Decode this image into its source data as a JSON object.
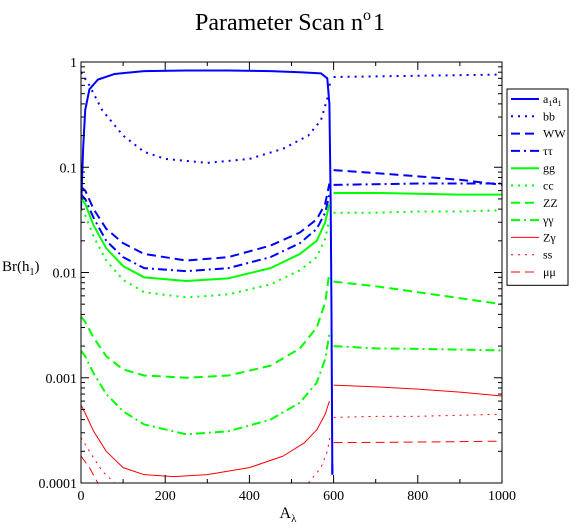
{
  "chart_data": {
    "type": "line",
    "title": "Parameter Scan n",
    "title_sup": "o",
    "title_tail": "1",
    "xlabel": "A",
    "xlabel_sub": "λ",
    "ylabel": "Br(h",
    "ylabel_sub": "1",
    "ylabel_tail": ")",
    "x_scale": "linear",
    "y_scale": "log",
    "xlim": [
      0,
      1000
    ],
    "ylim": [
      0.0001,
      1
    ],
    "x_ticks": [
      0,
      200,
      400,
      600,
      800,
      1000
    ],
    "x_tick_labels": [
      "0",
      "200",
      "400",
      "600",
      "800",
      "1000"
    ],
    "y_ticks": [
      0.0001,
      0.001,
      0.01,
      0.1,
      1
    ],
    "y_tick_labels": [
      "0.0001",
      "0.001",
      "0.01",
      "0.1",
      "1"
    ],
    "grid": false,
    "legend_position": "right",
    "series": [
      {
        "name": "a",
        "name_sub": "1",
        "name_mid": "a",
        "name_sub2": "1",
        "color": "#0000ff",
        "dash": "solid",
        "width": 2,
        "points": [
          [
            0,
            0.04
          ],
          [
            5,
            0.15
          ],
          [
            10,
            0.35
          ],
          [
            20,
            0.55
          ],
          [
            40,
            0.68
          ],
          [
            80,
            0.77
          ],
          [
            150,
            0.82
          ],
          [
            250,
            0.83
          ],
          [
            350,
            0.83
          ],
          [
            450,
            0.82
          ],
          [
            520,
            0.8
          ],
          [
            570,
            0.78
          ],
          [
            585,
            0.7
          ],
          [
            590,
            0.4
          ],
          [
            593,
            0.05
          ],
          [
            595,
            0.004
          ],
          [
            597,
            0.00012
          ]
        ]
      },
      {
        "name": "a",
        "name_sub": "1",
        "name_mid": "a",
        "name_sub2": "1",
        "color": "#0000ff",
        "dash": "solid",
        "width": 2,
        "points": [
          [
            597,
            0.00015
          ],
          [
            597,
            0.00012
          ]
        ]
      },
      {
        "name": "bb",
        "color": "#0000ff",
        "dash": "dot",
        "width": 2,
        "points": [
          [
            0,
            0.8
          ],
          [
            20,
            0.6
          ],
          [
            50,
            0.35
          ],
          [
            100,
            0.2
          ],
          [
            150,
            0.14
          ],
          [
            200,
            0.12
          ],
          [
            300,
            0.11
          ],
          [
            400,
            0.12
          ],
          [
            480,
            0.15
          ],
          [
            540,
            0.2
          ],
          [
            570,
            0.28
          ],
          [
            585,
            0.45
          ],
          [
            592,
            0.65
          ]
        ]
      },
      {
        "name": "bb",
        "color": "#0000ff",
        "dash": "dot",
        "width": 2,
        "points": [
          [
            600,
            0.72
          ],
          [
            700,
            0.73
          ],
          [
            800,
            0.74
          ],
          [
            900,
            0.75
          ],
          [
            1000,
            0.76
          ]
        ]
      },
      {
        "name": "WW",
        "color": "#0000ff",
        "dash": "dash",
        "width": 2,
        "points": [
          [
            0,
            0.065
          ],
          [
            10,
            0.06
          ],
          [
            30,
            0.04
          ],
          [
            60,
            0.026
          ],
          [
            100,
            0.019
          ],
          [
            150,
            0.015
          ],
          [
            250,
            0.013
          ],
          [
            350,
            0.014
          ],
          [
            450,
            0.018
          ],
          [
            520,
            0.024
          ],
          [
            560,
            0.032
          ],
          [
            580,
            0.045
          ],
          [
            590,
            0.07
          ]
        ]
      },
      {
        "name": "WW",
        "color": "#0000ff",
        "dash": "dash",
        "width": 2,
        "points": [
          [
            600,
            0.094
          ],
          [
            700,
            0.088
          ],
          [
            800,
            0.082
          ],
          [
            900,
            0.076
          ],
          [
            1000,
            0.068
          ]
        ]
      },
      {
        "name": "ττ",
        "color": "#0000ff",
        "dash": "dashdot",
        "width": 2,
        "points": [
          [
            0,
            0.055
          ],
          [
            10,
            0.05
          ],
          [
            30,
            0.033
          ],
          [
            60,
            0.02
          ],
          [
            100,
            0.014
          ],
          [
            150,
            0.011
          ],
          [
            250,
            0.0103
          ],
          [
            350,
            0.011
          ],
          [
            450,
            0.014
          ],
          [
            520,
            0.019
          ],
          [
            560,
            0.026
          ],
          [
            580,
            0.037
          ],
          [
            590,
            0.055
          ]
        ]
      },
      {
        "name": "ττ",
        "color": "#0000ff",
        "dash": "dashdot",
        "width": 2,
        "points": [
          [
            600,
            0.068
          ],
          [
            700,
            0.069
          ],
          [
            800,
            0.07
          ],
          [
            900,
            0.07
          ],
          [
            1000,
            0.07
          ]
        ]
      },
      {
        "name": "gg",
        "color": "#00ff00",
        "dash": "solid",
        "width": 2,
        "points": [
          [
            0,
            0.05
          ],
          [
            10,
            0.045
          ],
          [
            30,
            0.028
          ],
          [
            60,
            0.017
          ],
          [
            100,
            0.0115
          ],
          [
            150,
            0.009
          ],
          [
            250,
            0.0083
          ],
          [
            350,
            0.0088
          ],
          [
            450,
            0.011
          ],
          [
            520,
            0.015
          ],
          [
            560,
            0.02
          ],
          [
            580,
            0.03
          ],
          [
            590,
            0.045
          ]
        ]
      },
      {
        "name": "gg",
        "color": "#00ff00",
        "dash": "solid",
        "width": 2,
        "points": [
          [
            600,
            0.057
          ],
          [
            700,
            0.057
          ],
          [
            800,
            0.056
          ],
          [
            900,
            0.055
          ],
          [
            1000,
            0.055
          ]
        ]
      },
      {
        "name": "cc",
        "color": "#00ff00",
        "dash": "dot",
        "width": 2,
        "points": [
          [
            0,
            0.04
          ],
          [
            10,
            0.035
          ],
          [
            30,
            0.022
          ],
          [
            60,
            0.013
          ],
          [
            100,
            0.0085
          ],
          [
            150,
            0.0065
          ],
          [
            250,
            0.0058
          ],
          [
            350,
            0.0062
          ],
          [
            450,
            0.0077
          ],
          [
            520,
            0.0105
          ],
          [
            560,
            0.014
          ],
          [
            580,
            0.021
          ],
          [
            590,
            0.032
          ]
        ]
      },
      {
        "name": "cc",
        "color": "#00ff00",
        "dash": "dot",
        "width": 2,
        "points": [
          [
            600,
            0.037
          ],
          [
            700,
            0.037
          ],
          [
            800,
            0.038
          ],
          [
            900,
            0.038
          ],
          [
            1000,
            0.039
          ]
        ]
      },
      {
        "name": "ZZ",
        "color": "#00ff00",
        "dash": "dash",
        "width": 2,
        "points": [
          [
            0,
            0.0038
          ],
          [
            10,
            0.0034
          ],
          [
            30,
            0.0024
          ],
          [
            60,
            0.0016
          ],
          [
            100,
            0.0012
          ],
          [
            150,
            0.00105
          ],
          [
            250,
            0.001
          ],
          [
            350,
            0.00105
          ],
          [
            450,
            0.0013
          ],
          [
            520,
            0.0019
          ],
          [
            560,
            0.003
          ],
          [
            580,
            0.0052
          ],
          [
            590,
            0.01
          ]
        ]
      },
      {
        "name": "ZZ",
        "color": "#00ff00",
        "dash": "dash",
        "width": 2,
        "points": [
          [
            600,
            0.0082
          ],
          [
            700,
            0.0074
          ],
          [
            800,
            0.0065
          ],
          [
            900,
            0.0057
          ],
          [
            1000,
            0.005
          ]
        ]
      },
      {
        "name": "γγ",
        "color": "#00ff00",
        "dash": "dashdot",
        "width": 2,
        "points": [
          [
            0,
            0.0018
          ],
          [
            10,
            0.0016
          ],
          [
            30,
            0.0011
          ],
          [
            60,
            0.0007
          ],
          [
            100,
            0.00048
          ],
          [
            150,
            0.00036
          ],
          [
            250,
            0.00029
          ],
          [
            350,
            0.00031
          ],
          [
            450,
            0.0004
          ],
          [
            520,
            0.00058
          ],
          [
            560,
            0.0009
          ],
          [
            580,
            0.0015
          ],
          [
            590,
            0.0026
          ]
        ]
      },
      {
        "name": "γγ",
        "color": "#00ff00",
        "dash": "dashdot",
        "width": 2,
        "points": [
          [
            600,
            0.002
          ],
          [
            700,
            0.0019
          ],
          [
            800,
            0.00188
          ],
          [
            900,
            0.00185
          ],
          [
            1000,
            0.00182
          ]
        ]
      },
      {
        "name": "Zγ",
        "color": "#ff0000",
        "dash": "solid",
        "width": 1,
        "points": [
          [
            0,
            0.00055
          ],
          [
            10,
            0.00046
          ],
          [
            30,
            0.00031
          ],
          [
            60,
            0.0002
          ],
          [
            100,
            0.00014
          ],
          [
            150,
            0.00012
          ],
          [
            220,
            0.000115
          ],
          [
            300,
            0.00012
          ],
          [
            400,
            0.00014
          ],
          [
            480,
            0.00018
          ],
          [
            530,
            0.00024
          ],
          [
            560,
            0.00032
          ],
          [
            580,
            0.00045
          ],
          [
            590,
            0.0006
          ]
        ]
      },
      {
        "name": "Zγ",
        "color": "#ff0000",
        "dash": "solid",
        "width": 1,
        "points": [
          [
            600,
            0.00085
          ],
          [
            700,
            0.00082
          ],
          [
            800,
            0.00078
          ],
          [
            900,
            0.00073
          ],
          [
            1000,
            0.00067
          ]
        ]
      },
      {
        "name": "ss",
        "color": "#ff0000",
        "dash": "dot",
        "width": 1,
        "points": [
          [
            0,
            0.00027
          ],
          [
            20,
            0.0002
          ],
          [
            50,
            0.00013
          ],
          [
            80,
            0.0001
          ]
        ]
      },
      {
        "name": "ss",
        "color": "#ff0000",
        "dash": "dot",
        "width": 1,
        "points": [
          [
            540,
            0.0001
          ],
          [
            570,
            0.00014
          ],
          [
            585,
            0.0002
          ],
          [
            592,
            0.00028
          ]
        ]
      },
      {
        "name": "ss",
        "color": "#ff0000",
        "dash": "dot",
        "width": 1,
        "points": [
          [
            600,
            0.00042
          ],
          [
            700,
            0.00043
          ],
          [
            800,
            0.00043
          ],
          [
            900,
            0.00044
          ],
          [
            1000,
            0.00045
          ]
        ]
      },
      {
        "name": "μμ",
        "color": "#ff0000",
        "dash": "dash",
        "width": 1,
        "points": [
          [
            0,
            0.00018
          ],
          [
            20,
            0.00014
          ],
          [
            40,
            0.0001
          ]
        ]
      },
      {
        "name": "μμ",
        "color": "#ff0000",
        "dash": "dash",
        "width": 1,
        "points": [
          [
            600,
            0.000242
          ],
          [
            700,
            0.000243
          ],
          [
            800,
            0.000245
          ],
          [
            900,
            0.000247
          ],
          [
            1000,
            0.00025
          ]
        ]
      }
    ],
    "legend": [
      {
        "label": "a",
        "sub": "1",
        "label2": "a",
        "sub2": "1",
        "color": "#0000ff",
        "dash": "solid",
        "width": 2
      },
      {
        "label": "bb",
        "color": "#0000ff",
        "dash": "dot",
        "width": 2
      },
      {
        "label": "WW",
        "color": "#0000ff",
        "dash": "dash",
        "width": 2
      },
      {
        "label": "ττ",
        "color": "#0000ff",
        "dash": "dashdot",
        "width": 2
      },
      {
        "label": "gg",
        "color": "#00ff00",
        "dash": "solid",
        "width": 2
      },
      {
        "label": "cc",
        "color": "#00ff00",
        "dash": "dot",
        "width": 2
      },
      {
        "label": "ZZ",
        "color": "#00ff00",
        "dash": "dash",
        "width": 2
      },
      {
        "label": "γγ",
        "color": "#00ff00",
        "dash": "dashdot",
        "width": 2
      },
      {
        "label": "Zγ",
        "color": "#ff0000",
        "dash": "solid",
        "width": 1
      },
      {
        "label": "ss",
        "color": "#ff0000",
        "dash": "dot",
        "width": 1
      },
      {
        "label": "μμ",
        "color": "#ff0000",
        "dash": "dash",
        "width": 1
      }
    ]
  }
}
